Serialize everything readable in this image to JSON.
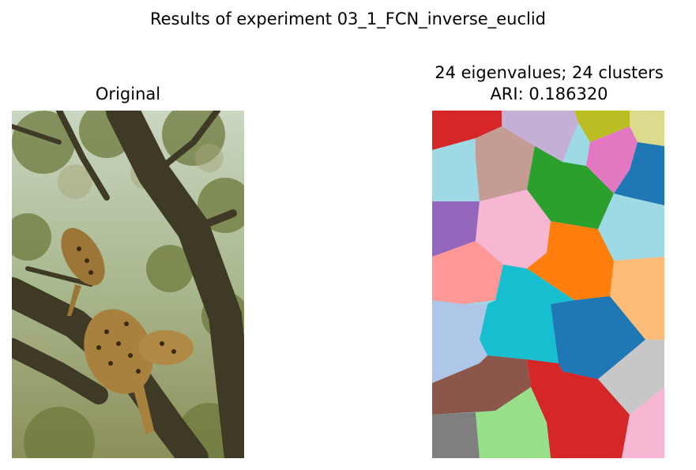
{
  "suptitle": "Results of experiment 03_1_FCN_inverse_euclid",
  "left_panel": {
    "title": "Original",
    "image": "photo of a leopard climbing down a tree branch among leaves"
  },
  "right_panel": {
    "title_line1": "24 eigenvalues; 24 clusters",
    "title_line2": "ARI: 0.186320",
    "image": "segmentation map with 24 colored regions"
  },
  "colors": {
    "red": "#d62728",
    "lavender": "#c5b0d5",
    "olive": "#bcbd22",
    "khaki": "#dbdb8d",
    "pink": "#e377c2",
    "blue": "#1f77b4",
    "lightcyan": "#9edae5",
    "tan": "#c49c94",
    "green": "#2ca02c",
    "purple": "#9467bd",
    "lightpink": "#f7b6d2",
    "orange": "#ff7f0e",
    "salmon": "#ff9896",
    "cyan": "#17becf",
    "peach": "#ffbb78",
    "lightblue": "#aec7e8",
    "brown": "#8c564b",
    "gray": "#c7c7c7",
    "darkgray": "#7f7f7f",
    "lightgreen": "#98df8a"
  }
}
